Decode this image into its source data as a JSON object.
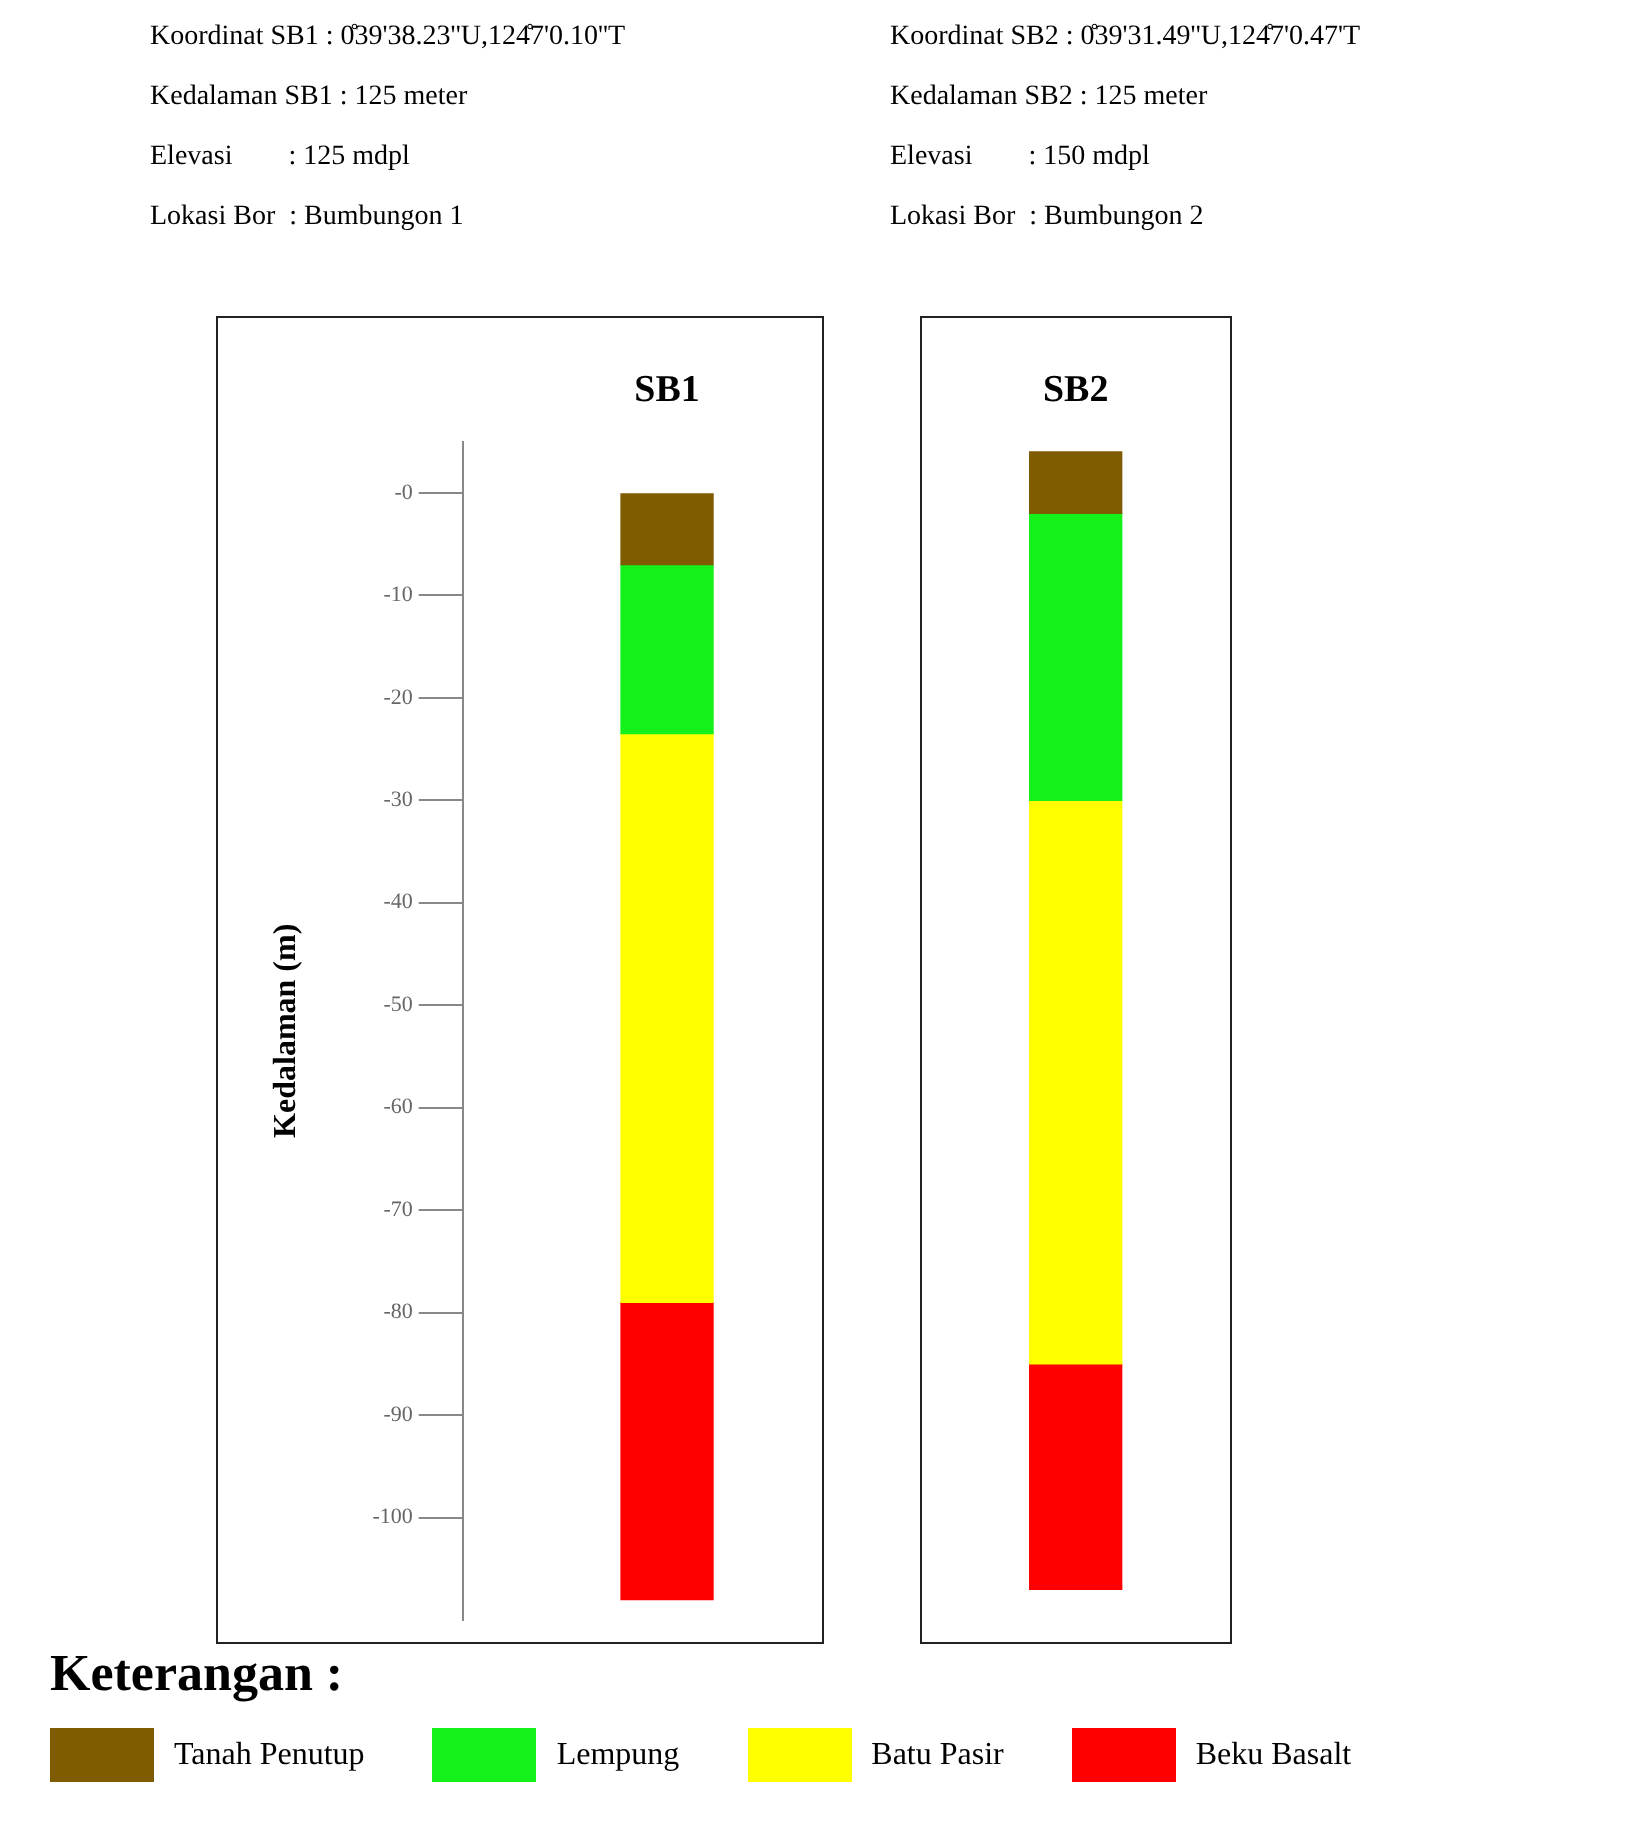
{
  "chart_data": {
    "type": "bar",
    "xlabel": null,
    "ylabel": "Kedalaman (m)",
    "legend_title": "Keterangan :",
    "legend": "bottom",
    "grid": false,
    "annotations": [
      "Koordinat SB1 : 0̊39'38.23''U,124̊7'0.10''T",
      "Kedalaman SB1 : 125 meter",
      "Elevasi        : 125 mdpl",
      "Lokasi Bor  : Bumbungon 1",
      "Koordinat SB2 : 0̊39'31.49''U,124̊7'0.47'T",
      "Kedalaman SB2 : 125 meter",
      "Elevasi        : 150 mdpl",
      "Lokasi Bor  : Bumbungon 2"
    ],
    "categories": [
      "SB1",
      "SB2"
    ],
    "ylim": [
      -110,
      5
    ],
    "yticks": [
      {
        "value": 0,
        "label": "-0"
      },
      -10,
      -20,
      -30,
      -40,
      -50,
      -60,
      -70,
      -80,
      -90,
      -100
    ],
    "series": [
      {
        "name": "Tanah Penutup",
        "color": "#7f5c00",
        "base": [
          0,
          4
        ],
        "values": [
          -7,
          -6
        ]
      },
      {
        "name": "Lempung",
        "color": "#14f01a",
        "base": [
          -7,
          -2
        ],
        "values": [
          -16.5,
          -28
        ]
      },
      {
        "name": "Batu Pasir",
        "color": "#ffff00",
        "base": [
          -23.5,
          -30
        ],
        "values": [
          -55.5,
          -55
        ]
      },
      {
        "name": "Beku Basalt",
        "color": "#ff0000",
        "base": [
          -79,
          -85
        ],
        "values": [
          -29,
          -22
        ]
      }
    ]
  }
}
